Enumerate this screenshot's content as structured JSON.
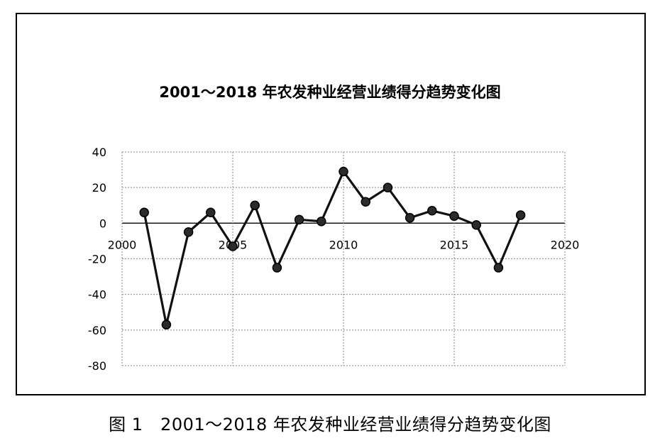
{
  "caption": "图 1　2001～2018 年农发种业经营业绩得分趋势变化图",
  "chart_data": {
    "type": "line",
    "title": "2001～2018 年农发种业经营业绩得分趋势变化图",
    "xlabel": "",
    "ylabel": "",
    "xlim": [
      2000,
      2020
    ],
    "ylim": [
      -80,
      40
    ],
    "x_ticks": [
      2000,
      2005,
      2010,
      2015,
      2020
    ],
    "y_ticks": [
      40,
      20,
      0,
      -20,
      -40,
      -60,
      -80
    ],
    "grid": true,
    "series": [
      {
        "x": [
          2001,
          2002,
          2003,
          2004,
          2005,
          2006,
          2007,
          2008,
          2009,
          2010,
          2011,
          2012,
          2013,
          2014,
          2015,
          2016,
          2017,
          2018
        ],
        "y": [
          6,
          -57,
          -5,
          6,
          -13,
          10,
          -25,
          2,
          1,
          29,
          12,
          20,
          3,
          7,
          4,
          -1,
          -25,
          4.5
        ]
      }
    ],
    "colors": {
      "line": "#111111",
      "marker_fill": "#2b2b2b",
      "grid": "#888888",
      "frame": "#000000"
    }
  }
}
